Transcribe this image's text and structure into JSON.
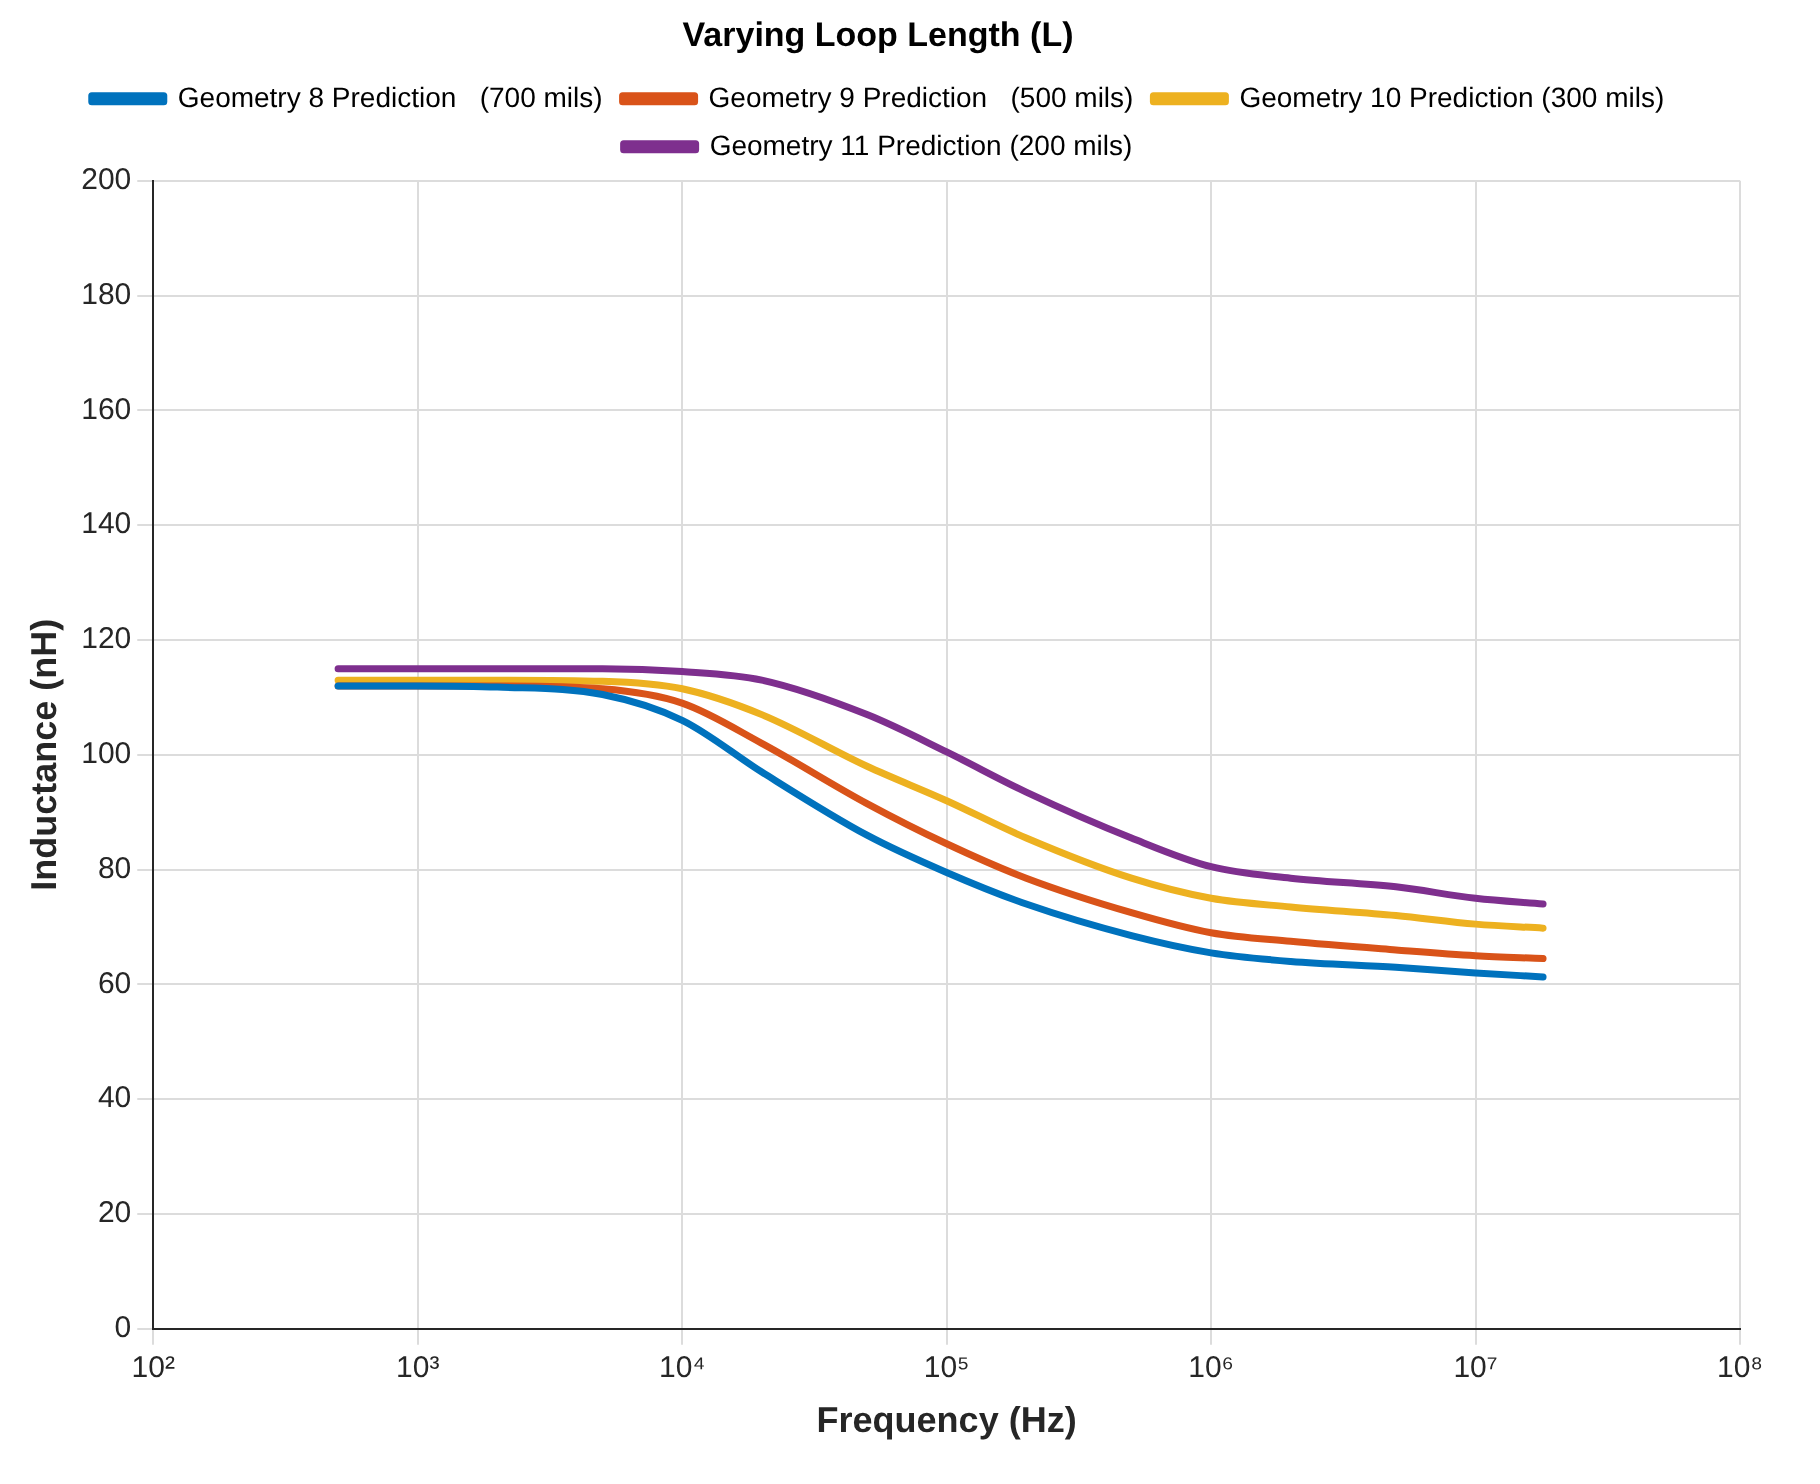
{
  "chart_data": {
    "type": "line",
    "title": "Varying Loop Length (L)",
    "xlabel": "Frequency (Hz)",
    "ylabel": "Inductance (nH)",
    "x": [
      500,
      1000,
      2000,
      5000,
      10000,
      20000,
      50000,
      100000,
      200000,
      500000,
      1000000,
      2000000,
      5000000,
      10000000,
      18000000
    ],
    "series": [
      {
        "name": "Geometry 8 Prediction   (700 mils)",
        "color": "#0072bd",
        "values": [
          112,
          112,
          111.8,
          110.5,
          106,
          97,
          86,
          79.5,
          74,
          68.5,
          65.5,
          64,
          63,
          62,
          61.3
        ]
      },
      {
        "name": "Geometry 9 Prediction   (500 mils)",
        "color": "#d95319",
        "values": [
          112,
          112,
          112,
          111.5,
          109,
          102,
          91.5,
          84.5,
          78.5,
          72.5,
          69,
          67.5,
          66,
          65,
          64.5
        ]
      },
      {
        "name": "Geometry 10 Prediction (300 mils)",
        "color": "#edb120",
        "values": [
          113,
          113,
          113,
          112.8,
          111.5,
          107,
          98,
          92,
          85.5,
          78.5,
          75,
          73.5,
          72,
          70.5,
          69.8
        ]
      },
      {
        "name": "Geometry 11 Prediction (200 mils)",
        "color": "#7e2f8e",
        "values": [
          115,
          115,
          115,
          115,
          114.5,
          113,
          107,
          100.5,
          93.5,
          85.5,
          80.5,
          78.5,
          77,
          75,
          74
        ]
      }
    ],
    "log": "x",
    "xlim": [
      100,
      100000000
    ],
    "xticks": [
      {
        "value": 100,
        "label": "10²"
      },
      {
        "value": 1000,
        "label": "10³"
      },
      {
        "value": 10000,
        "label": "10⁴"
      },
      {
        "value": 100000,
        "label": "10⁵"
      },
      {
        "value": 1000000,
        "label": "10⁶"
      },
      {
        "value": 10000000,
        "label": "10⁷"
      },
      {
        "value": 100000000,
        "label": "10⁸"
      }
    ],
    "ylim": [
      0,
      200
    ],
    "yticks": [
      0,
      20,
      40,
      60,
      80,
      100,
      120,
      140,
      160,
      180,
      200
    ],
    "grid": true,
    "legend": "top",
    "marker": "none",
    "line_style": "solid"
  }
}
